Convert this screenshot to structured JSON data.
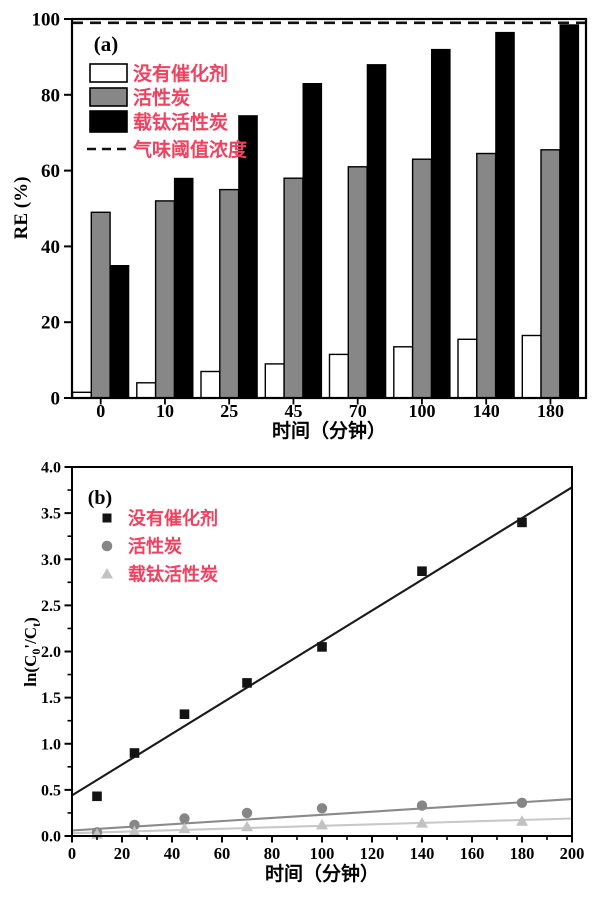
{
  "page": {
    "background": "#ffffff"
  },
  "colors": {
    "legend_text": "#f0415f",
    "axis": "#000000",
    "bar_white_fill": "#ffffff",
    "bar_gray_fill": "#878787",
    "bar_black_fill": "#000000",
    "bar_stroke": "#000000",
    "marker_square": "#141414",
    "marker_circle": "#868686",
    "marker_triangle": "#c2c2c2",
    "fit_line_black": "#1a1a1a",
    "fit_line_gray": "#8a8a8a",
    "fit_line_light": "#c8c8c8",
    "threshold_line": "#111111"
  },
  "chart_data": [
    {
      "id": "a",
      "type": "bar",
      "panel_label": "(a)",
      "xlabel": "时间（分钟）",
      "ylabel": "RE (%)",
      "ylim": [
        0,
        100
      ],
      "yticks": [
        0,
        20,
        40,
        60,
        80,
        100
      ],
      "grid": false,
      "legend_position": "upper-left",
      "categories": [
        "0",
        "10",
        "25",
        "45",
        "70",
        "100",
        "140",
        "180"
      ],
      "series": [
        {
          "key": "no-catalyst",
          "name": "没有催化剂",
          "style": "white",
          "values": [
            1.5,
            4,
            7,
            9,
            11.5,
            13.5,
            15.5,
            16.5
          ]
        },
        {
          "key": "activated-carbon",
          "name": "活性炭",
          "style": "gray",
          "values": [
            49,
            52,
            55,
            58,
            61,
            63,
            64.5,
            65.5
          ]
        },
        {
          "key": "ti-activated-carbon",
          "name": "载钛活性炭",
          "style": "black",
          "values": [
            35,
            58,
            74.5,
            83,
            88,
            92,
            96.5,
            98.5
          ]
        }
      ],
      "threshold": {
        "key": "odor-threshold",
        "label": "气味阈值浓度",
        "value": 99,
        "style": "dashed"
      }
    },
    {
      "id": "b",
      "type": "scatter",
      "panel_label": "(b)",
      "xlabel": "时间（分钟）",
      "ylabel_text": "ln(C0'/Ct)",
      "ylabel_parts": [
        {
          "t": "ln(C"
        },
        {
          "t": "0",
          "sub": true
        },
        {
          "t": "'/C"
        },
        {
          "t": "t",
          "sub": true
        },
        {
          "t": ")"
        }
      ],
      "xlim": [
        0,
        200
      ],
      "ylim": [
        0,
        4
      ],
      "xticks": [
        0,
        20,
        40,
        60,
        80,
        100,
        120,
        140,
        160,
        180,
        200
      ],
      "ytick_labels": [
        "0.0",
        "0.5",
        "1.0",
        "1.5",
        "2.0",
        "2.5",
        "3.0",
        "3.5",
        "4.0"
      ],
      "minor_x_step": 10,
      "minor_y_step": 0.25,
      "grid": false,
      "legend_position": "upper-left",
      "x": [
        10,
        25,
        45,
        70,
        100,
        140,
        180
      ],
      "series": [
        {
          "key": "no-catalyst",
          "name": "没有催化剂",
          "marker": "square",
          "values": [
            0.43,
            0.9,
            1.32,
            1.66,
            2.05,
            2.87,
            3.4
          ],
          "fit": {
            "x0": 0,
            "y0": 0.44,
            "x1": 200,
            "y1": 3.78
          }
        },
        {
          "key": "activated-carbon",
          "name": "活性炭",
          "marker": "circle",
          "values": [
            0.04,
            0.12,
            0.19,
            0.25,
            0.3,
            0.33,
            0.36
          ],
          "fit": {
            "x0": 0,
            "y0": 0.06,
            "x1": 200,
            "y1": 0.4
          }
        },
        {
          "key": "ti-activated-carbon",
          "name": "载钛活性炭",
          "marker": "triangle",
          "values": [
            0.02,
            0.05,
            0.08,
            0.1,
            0.12,
            0.14,
            0.16
          ],
          "fit": {
            "x0": 0,
            "y0": 0.03,
            "x1": 200,
            "y1": 0.19
          }
        }
      ]
    }
  ]
}
